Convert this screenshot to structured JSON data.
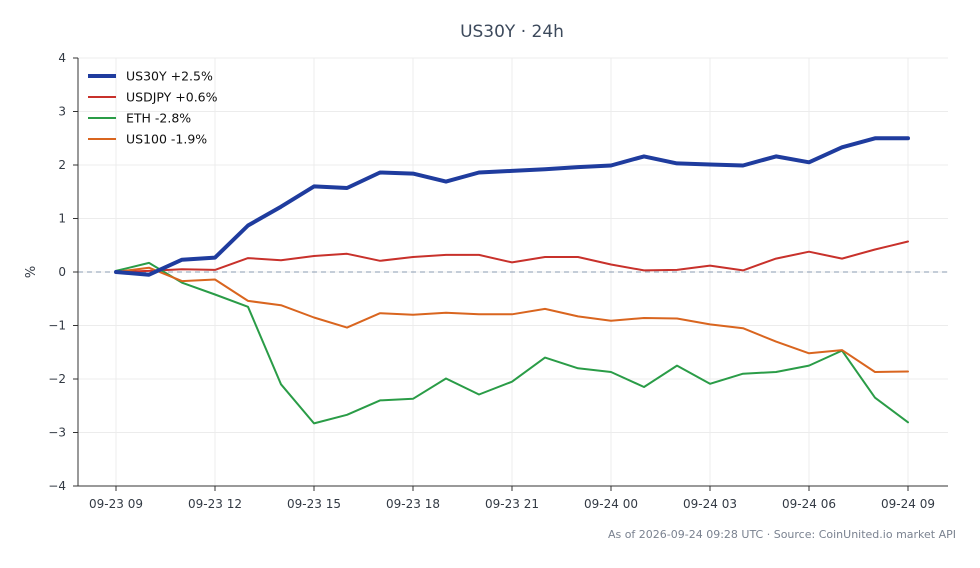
{
  "chart_data": {
    "type": "line",
    "title": "US30Y · 24h",
    "xlabel": "",
    "ylabel": "%",
    "ylim": [
      -4,
      4
    ],
    "yticks": [
      4,
      3,
      2,
      1,
      0,
      -1,
      -2,
      -3,
      -4
    ],
    "ytick_labels": [
      "4",
      "3",
      "2",
      "1",
      "0",
      "−1",
      "−2",
      "−3",
      "−4"
    ],
    "x": [
      "09-23 09",
      "09-23 10",
      "09-23 11",
      "09-23 12",
      "09-23 13",
      "09-23 14",
      "09-23 15",
      "09-23 16",
      "09-23 17",
      "09-23 18",
      "09-23 19",
      "09-23 20",
      "09-23 21",
      "09-23 22",
      "09-23 23",
      "09-24 00",
      "09-24 01",
      "09-24 02",
      "09-24 03",
      "09-24 04",
      "09-24 05",
      "09-24 06",
      "09-24 07",
      "09-24 08",
      "09-24 09"
    ],
    "xtick_labels": [
      "09-23 09",
      "09-23 12",
      "09-23 15",
      "09-23 18",
      "09-23 21",
      "09-24 00",
      "09-24 03",
      "09-24 06",
      "09-24 09"
    ],
    "grid": true,
    "zero_line": true,
    "legend_position": "top-left",
    "series": [
      {
        "name": "US30Y +2.5%",
        "color": "#1f3c9e",
        "width": 4,
        "values": [
          0,
          -0.05,
          0.23,
          0.27,
          0.87,
          1.22,
          1.6,
          1.57,
          1.86,
          1.84,
          1.69,
          1.86,
          1.89,
          1.92,
          1.96,
          1.99,
          2.16,
          2.03,
          2.01,
          1.99,
          2.16,
          2.05,
          2.33,
          2.5,
          2.5
        ]
      },
      {
        "name": "USDJPY +0.6%",
        "color": "#c8312b",
        "width": 2,
        "values": [
          0,
          0.02,
          0.05,
          0.04,
          0.26,
          0.22,
          0.3,
          0.34,
          0.21,
          0.28,
          0.32,
          0.32,
          0.18,
          0.28,
          0.28,
          0.14,
          0.03,
          0.04,
          0.12,
          0.03,
          0.25,
          0.38,
          0.25,
          0.42,
          0.57
        ]
      },
      {
        "name": "ETH -2.8%",
        "color": "#2a9c47",
        "width": 2,
        "values": [
          0.02,
          0.17,
          -0.2,
          -0.42,
          -0.65,
          -2.1,
          -2.83,
          -2.67,
          -2.4,
          -2.37,
          -1.99,
          -2.29,
          -2.05,
          -1.6,
          -1.8,
          -1.87,
          -2.15,
          -1.75,
          -2.09,
          -1.9,
          -1.87,
          -1.75,
          -1.47,
          -2.35,
          -2.81
        ]
      },
      {
        "name": "US100 -1.9%",
        "color": "#d9651f",
        "width": 2,
        "values": [
          0,
          0.08,
          -0.17,
          -0.14,
          -0.54,
          -0.62,
          -0.85,
          -1.04,
          -0.77,
          -0.8,
          -0.76,
          -0.79,
          -0.79,
          -0.69,
          -0.83,
          -0.91,
          -0.86,
          -0.87,
          -0.98,
          -1.05,
          -1.3,
          -1.52,
          -1.46,
          -1.87,
          -1.86
        ]
      }
    ],
    "footer": "As of 2026-09-24 09:28 UTC · Source: CoinUnited.io market API"
  }
}
